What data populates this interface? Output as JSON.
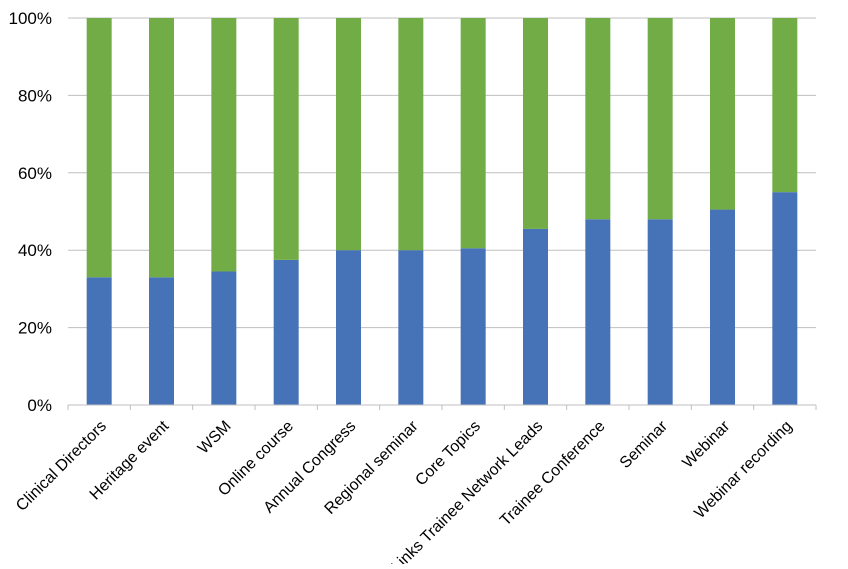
{
  "chart_data": {
    "type": "bar",
    "stacked": true,
    "percent_stacked": true,
    "title": "",
    "xlabel": "",
    "ylabel": "",
    "ylim": [
      0,
      100
    ],
    "y_ticks": [
      "0%",
      "20%",
      "40%",
      "60%",
      "80%",
      "100%"
    ],
    "grid": true,
    "legend": "none",
    "categories": [
      "Clinical Directors",
      "Heritage event",
      "WSM",
      "Online course",
      "Annual Congress",
      "Regional seminar",
      "Core Topics",
      "Links Trainee Network Leads",
      "Trainee Conference",
      "Seminar",
      "Webinar",
      "Webinar recording"
    ],
    "series": [
      {
        "color": "#4672B8",
        "values": [
          33,
          33,
          34.5,
          37.5,
          40,
          40,
          40.5,
          45.5,
          48,
          48,
          50.5,
          55
        ]
      },
      {
        "color": "#72AC47",
        "values": [
          67,
          67,
          65.5,
          62.5,
          60,
          60,
          59.5,
          54.5,
          52,
          52,
          49.5,
          45
        ]
      }
    ]
  }
}
